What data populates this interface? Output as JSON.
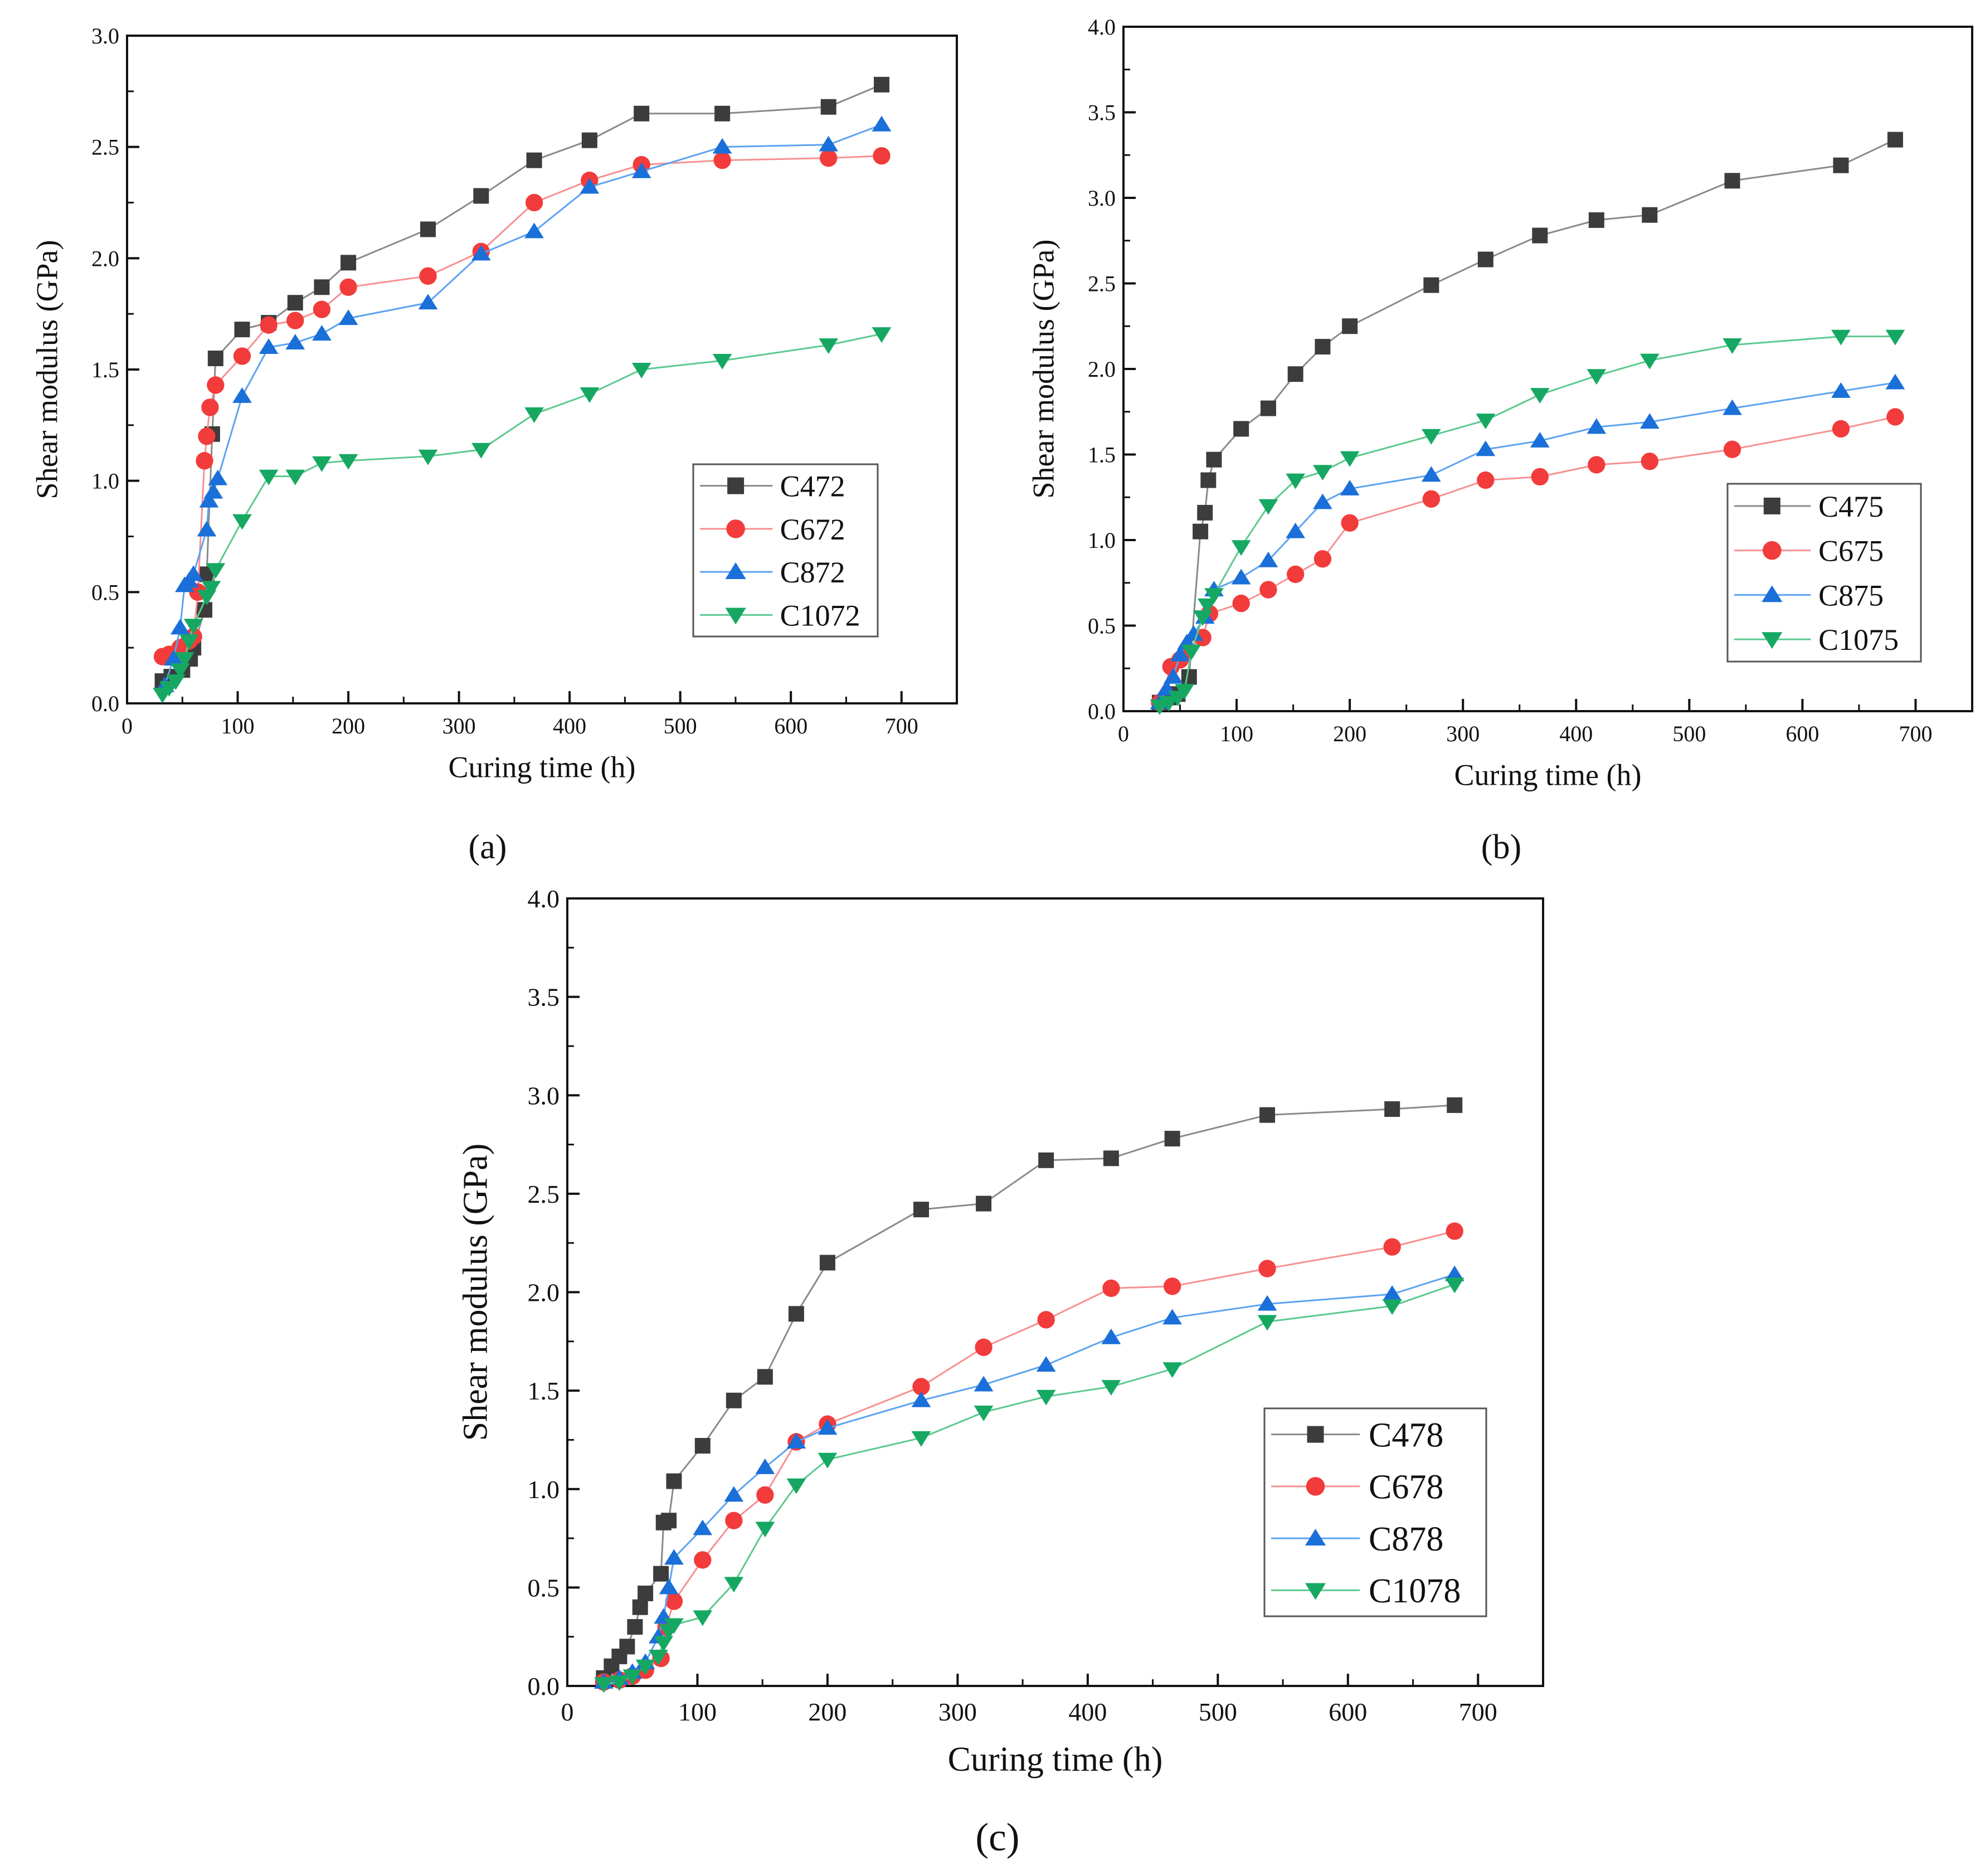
{
  "chart_data": [
    {
      "type": "line",
      "panel_label": "(a)",
      "xlabel": "Curing time (h)",
      "ylabel": "Shear modulus (GPa)",
      "xlim": [
        0,
        750
      ],
      "ylim": [
        0,
        3.0
      ],
      "xticks": [
        "0",
        "100",
        "200",
        "300",
        "400",
        "500",
        "600",
        "700"
      ],
      "yticks": [
        "0.0",
        "0.5",
        "1.0",
        "1.5",
        "2.0",
        "2.5",
        "3.0"
      ],
      "legend_position": "lower-right",
      "series": [
        {
          "name": "C472",
          "marker": "square",
          "color": "#3c3c3c",
          "line": "#8a8a8a",
          "x": [
            32,
            40,
            50,
            57,
            60,
            70,
            72,
            77,
            80,
            104,
            128,
            152,
            176,
            200,
            272,
            320,
            368,
            418,
            465,
            538,
            634,
            682
          ],
          "y": [
            0.1,
            0.12,
            0.15,
            0.2,
            0.25,
            0.42,
            0.58,
            1.21,
            1.55,
            1.68,
            1.71,
            1.8,
            1.87,
            1.98,
            2.13,
            2.28,
            2.44,
            2.53,
            2.65,
            2.65,
            2.68,
            2.78
          ]
        },
        {
          "name": "C672",
          "marker": "circle",
          "color": "#f23b3b",
          "line": "#f79090",
          "x": [
            32,
            38,
            48,
            56,
            60,
            64,
            70,
            72,
            75,
            80,
            104,
            128,
            152,
            176,
            200,
            272,
            320,
            368,
            418,
            465,
            538,
            634,
            682
          ],
          "y": [
            0.21,
            0.22,
            0.25,
            0.28,
            0.3,
            0.5,
            1.09,
            1.2,
            1.33,
            1.43,
            1.56,
            1.7,
            1.72,
            1.77,
            1.87,
            1.92,
            2.03,
            2.25,
            2.35,
            2.42,
            2.44,
            2.45,
            2.46
          ]
        },
        {
          "name": "C872",
          "marker": "triangle-up",
          "color": "#1a6fd9",
          "line": "#5da2f0",
          "x": [
            34,
            42,
            48,
            52,
            56,
            60,
            72,
            74,
            78,
            82,
            104,
            128,
            152,
            176,
            200,
            272,
            320,
            368,
            418,
            465,
            538,
            634,
            682
          ],
          "y": [
            0.08,
            0.2,
            0.34,
            0.53,
            0.55,
            0.58,
            0.78,
            0.91,
            0.95,
            1.01,
            1.38,
            1.6,
            1.62,
            1.66,
            1.73,
            1.8,
            2.02,
            2.12,
            2.32,
            2.39,
            2.5,
            2.51,
            2.6
          ]
        },
        {
          "name": "C1072",
          "marker": "triangle-down",
          "color": "#16a862",
          "line": "#5cc98e",
          "x": [
            32,
            38,
            44,
            48,
            52,
            56,
            60,
            72,
            76,
            80,
            104,
            128,
            152,
            176,
            200,
            272,
            320,
            368,
            418,
            465,
            538,
            634,
            682
          ],
          "y": [
            0.04,
            0.07,
            0.1,
            0.15,
            0.2,
            0.28,
            0.35,
            0.48,
            0.52,
            0.6,
            0.82,
            1.02,
            1.02,
            1.08,
            1.09,
            1.11,
            1.14,
            1.3,
            1.39,
            1.5,
            1.54,
            1.61,
            1.66
          ]
        }
      ]
    },
    {
      "type": "line",
      "panel_label": "(b)",
      "xlabel": "Curing time (h)",
      "ylabel": "Shear modulus (GPa)",
      "xlim": [
        0,
        750
      ],
      "ylim": [
        0,
        4.0
      ],
      "xticks": [
        "0",
        "100",
        "200",
        "300",
        "400",
        "500",
        "600",
        "700"
      ],
      "yticks": [
        "0.0",
        "0.5",
        "1.0",
        "1.5",
        "2.0",
        "2.5",
        "3.0",
        "3.5",
        "4.0"
      ],
      "legend_position": "lower-right",
      "series": [
        {
          "name": "C475",
          "marker": "square",
          "color": "#3c3c3c",
          "line": "#8a8a8a",
          "x": [
            32,
            40,
            48,
            58,
            68,
            72,
            75,
            80,
            104,
            128,
            152,
            176,
            200,
            272,
            320,
            368,
            418,
            465,
            538,
            634,
            682
          ],
          "y": [
            0.05,
            0.08,
            0.1,
            0.2,
            1.05,
            1.16,
            1.35,
            1.47,
            1.65,
            1.77,
            1.97,
            2.13,
            2.25,
            2.49,
            2.64,
            2.78,
            2.87,
            2.9,
            3.1,
            3.19,
            3.34
          ]
        },
        {
          "name": "C675",
          "marker": "circle",
          "color": "#f23b3b",
          "line": "#f79090",
          "x": [
            32,
            42,
            50,
            56,
            70,
            76,
            104,
            128,
            152,
            176,
            200,
            272,
            320,
            368,
            418,
            465,
            538,
            634,
            682
          ],
          "y": [
            0.05,
            0.26,
            0.3,
            0.35,
            0.43,
            0.57,
            0.63,
            0.71,
            0.8,
            0.89,
            1.1,
            1.24,
            1.35,
            1.37,
            1.44,
            1.46,
            1.53,
            1.65,
            1.72
          ]
        },
        {
          "name": "C875",
          "marker": "triangle-up",
          "color": "#1a6fd9",
          "line": "#5da2f0",
          "x": [
            32,
            38,
            44,
            50,
            56,
            62,
            72,
            80,
            104,
            128,
            152,
            176,
            200,
            272,
            320,
            368,
            418,
            465,
            538,
            634,
            682
          ],
          "y": [
            0.05,
            0.13,
            0.2,
            0.33,
            0.4,
            0.45,
            0.55,
            0.71,
            0.78,
            0.88,
            1.05,
            1.22,
            1.3,
            1.38,
            1.53,
            1.58,
            1.66,
            1.69,
            1.77,
            1.87,
            1.92
          ]
        },
        {
          "name": "C1075",
          "marker": "triangle-down",
          "color": "#16a862",
          "line": "#5cc98e",
          "x": [
            32,
            40,
            48,
            54,
            60,
            70,
            74,
            80,
            104,
            128,
            152,
            176,
            200,
            272,
            320,
            368,
            418,
            465,
            538,
            634,
            682
          ],
          "y": [
            0.03,
            0.05,
            0.08,
            0.12,
            0.35,
            0.55,
            0.62,
            0.68,
            0.96,
            1.2,
            1.35,
            1.4,
            1.48,
            1.61,
            1.7,
            1.85,
            1.96,
            2.05,
            2.14,
            2.19,
            2.19
          ]
        }
      ]
    },
    {
      "type": "line",
      "panel_label": "(c)",
      "xlabel": "Curing time (h)",
      "ylabel": "Shear modulus (GPa)",
      "xlim": [
        0,
        750
      ],
      "ylim": [
        0,
        4.0
      ],
      "xticks": [
        "0",
        "100",
        "200",
        "300",
        "400",
        "500",
        "600",
        "700"
      ],
      "yticks": [
        "0.0",
        "0.5",
        "1.0",
        "1.5",
        "2.0",
        "2.5",
        "3.0",
        "3.5",
        "4.0"
      ],
      "legend_position": "lower-right",
      "series": [
        {
          "name": "C478",
          "marker": "square",
          "color": "#3c3c3c",
          "line": "#8a8a8a",
          "x": [
            28,
            34,
            40,
            46,
            52,
            56,
            60,
            72,
            74,
            78,
            82,
            104,
            128,
            152,
            176,
            200,
            272,
            320,
            368,
            418,
            465,
            538,
            634,
            682
          ],
          "y": [
            0.04,
            0.1,
            0.15,
            0.2,
            0.3,
            0.4,
            0.47,
            0.57,
            0.83,
            0.84,
            1.04,
            1.22,
            1.45,
            1.57,
            1.89,
            2.15,
            2.42,
            2.45,
            2.67,
            2.68,
            2.78,
            2.9,
            2.93,
            2.95
          ]
        },
        {
          "name": "C678",
          "marker": "circle",
          "color": "#f23b3b",
          "line": "#f79090",
          "x": [
            28,
            40,
            50,
            60,
            72,
            76,
            82,
            104,
            128,
            152,
            176,
            200,
            272,
            320,
            368,
            418,
            465,
            538,
            634,
            682
          ],
          "y": [
            0.02,
            0.03,
            0.05,
            0.08,
            0.14,
            0.3,
            0.43,
            0.64,
            0.84,
            0.97,
            1.24,
            1.33,
            1.52,
            1.72,
            1.86,
            2.02,
            2.03,
            2.12,
            2.23,
            2.31
          ]
        },
        {
          "name": "C878",
          "marker": "triangle-up",
          "color": "#1a6fd9",
          "line": "#5da2f0",
          "x": [
            28,
            40,
            50,
            60,
            70,
            74,
            78,
            82,
            104,
            128,
            152,
            176,
            200,
            272,
            320,
            368,
            418,
            465,
            538,
            634,
            682
          ],
          "y": [
            0.02,
            0.04,
            0.07,
            0.12,
            0.25,
            0.35,
            0.5,
            0.65,
            0.8,
            0.97,
            1.11,
            1.24,
            1.31,
            1.45,
            1.53,
            1.63,
            1.77,
            1.87,
            1.94,
            1.99,
            2.09
          ]
        },
        {
          "name": "C1078",
          "marker": "triangle-down",
          "color": "#16a862",
          "line": "#5cc98e",
          "x": [
            28,
            40,
            50,
            60,
            70,
            74,
            78,
            82,
            104,
            128,
            152,
            176,
            200,
            272,
            320,
            368,
            418,
            465,
            538,
            634,
            682
          ],
          "y": [
            0.01,
            0.02,
            0.05,
            0.1,
            0.15,
            0.22,
            0.28,
            0.31,
            0.35,
            0.52,
            0.8,
            1.02,
            1.15,
            1.26,
            1.39,
            1.47,
            1.52,
            1.61,
            1.85,
            1.93,
            2.04
          ]
        }
      ]
    }
  ]
}
